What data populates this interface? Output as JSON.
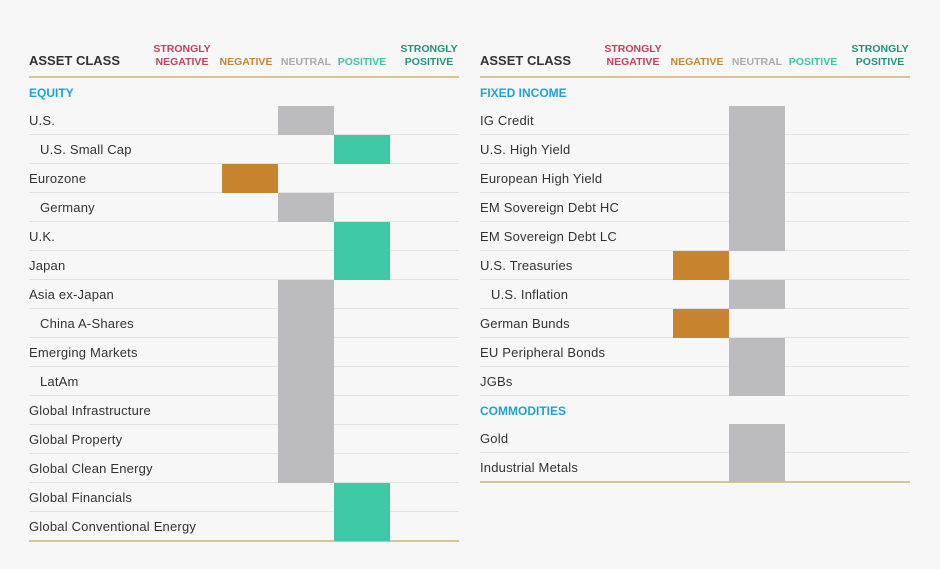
{
  "columns": [
    {
      "id": "strongly_negative",
      "label": "STRONGLY NEGATIVE",
      "lines": [
        "STRONGLY",
        "NEGATIVE"
      ],
      "color": "#c4425c"
    },
    {
      "id": "negative",
      "label": "NEGATIVE",
      "lines": [
        "NEGATIVE"
      ],
      "color": "#c9852f"
    },
    {
      "id": "neutral",
      "label": "NEUTRAL",
      "lines": [
        "NEUTRAL"
      ],
      "color": "#a9aaac"
    },
    {
      "id": "positive",
      "label": "POSITIVE",
      "lines": [
        "POSITIVE"
      ],
      "color": "#3cc8a5"
    },
    {
      "id": "strongly_positive",
      "label": "STRONGLY POSITIVE",
      "lines": [
        "STRONGLY",
        "POSITIVE"
      ],
      "color": "#21957a"
    }
  ],
  "cell_colors": {
    "negative": "#c8832f",
    "neutral": "#bcbcbe",
    "positive": "#3ec9a4"
  },
  "chart_data": {
    "type": "table",
    "panels": [
      {
        "header": "ASSET CLASS",
        "sections": [
          {
            "title": "EQUITY",
            "rows": [
              {
                "label": "U.S.",
                "indent": false,
                "rating": "neutral"
              },
              {
                "label": "U.S. Small Cap",
                "indent": true,
                "rating": "positive"
              },
              {
                "label": "Eurozone",
                "indent": false,
                "rating": "negative"
              },
              {
                "label": "Germany",
                "indent": true,
                "rating": "neutral"
              },
              {
                "label": "U.K.",
                "indent": false,
                "rating": "positive"
              },
              {
                "label": "Japan",
                "indent": false,
                "rating": "positive"
              },
              {
                "label": "Asia ex-Japan",
                "indent": false,
                "rating": "neutral"
              },
              {
                "label": "China A-Shares",
                "indent": true,
                "rating": "neutral"
              },
              {
                "label": "Emerging Markets",
                "indent": false,
                "rating": "neutral"
              },
              {
                "label": "LatAm",
                "indent": true,
                "rating": "neutral"
              },
              {
                "label": "Global Infrastructure",
                "indent": false,
                "rating": "neutral"
              },
              {
                "label": "Global Property",
                "indent": false,
                "rating": "neutral"
              },
              {
                "label": "Global Clean Energy",
                "indent": false,
                "rating": "neutral"
              },
              {
                "label": "Global Financials",
                "indent": false,
                "rating": "positive"
              },
              {
                "label": "Global Conventional Energy",
                "indent": false,
                "rating": "positive"
              }
            ]
          }
        ]
      },
      {
        "header": "ASSET CLASS",
        "sections": [
          {
            "title": "FIXED INCOME",
            "rows": [
              {
                "label": "IG Credit",
                "indent": false,
                "rating": "neutral"
              },
              {
                "label": "U.S. High Yield",
                "indent": false,
                "rating": "neutral"
              },
              {
                "label": "European High Yield",
                "indent": false,
                "rating": "neutral"
              },
              {
                "label": "EM Sovereign Debt HC",
                "indent": false,
                "rating": "neutral"
              },
              {
                "label": "EM Sovereign Debt LC",
                "indent": false,
                "rating": "neutral"
              },
              {
                "label": "U.S. Treasuries",
                "indent": false,
                "rating": "negative"
              },
              {
                "label": "U.S. Inflation",
                "indent": true,
                "rating": "neutral"
              },
              {
                "label": "German Bunds",
                "indent": false,
                "rating": "negative"
              },
              {
                "label": "EU Peripheral Bonds",
                "indent": false,
                "rating": "neutral"
              },
              {
                "label": "JGBs",
                "indent": false,
                "rating": "neutral"
              }
            ]
          },
          {
            "title": "COMMODITIES",
            "rows": [
              {
                "label": "Gold",
                "indent": false,
                "rating": "neutral"
              },
              {
                "label": "Industrial Metals",
                "indent": false,
                "rating": "neutral"
              }
            ]
          }
        ]
      }
    ]
  }
}
